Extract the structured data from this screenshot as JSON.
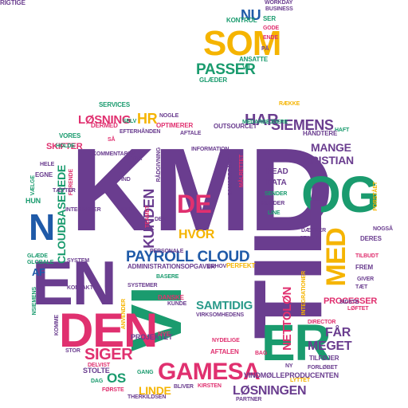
{
  "palette": {
    "purple": "#6a3d8f",
    "green": "#1a9b6e",
    "pink": "#e0306f",
    "gold": "#f5b400",
    "blue": "#1f5aa8",
    "teal": "#2a9a8a"
  },
  "words": [
    {
      "text": "KMD",
      "c": "purple"
    },
    {
      "text": "VI",
      "c": "green"
    },
    {
      "text": "OG",
      "c": "green"
    },
    {
      "text": "EN",
      "c": "purple"
    },
    {
      "text": "TIL",
      "c": "purple"
    },
    {
      "text": "DEN",
      "c": "pink"
    },
    {
      "text": "ER",
      "c": "green"
    },
    {
      "text": "SOM",
      "c": "gold"
    },
    {
      "text": "MED",
      "c": "gold"
    },
    {
      "text": "N",
      "c": "blue"
    },
    {
      "text": "GAMESA",
      "c": "pink"
    },
    {
      "text": "PAYROLL CLOUD",
      "c": "blue"
    },
    {
      "text": "DE",
      "c": "pink"
    },
    {
      "text": "SIEMENS",
      "c": "purple"
    },
    {
      "text": "CLOUDBASEREDE",
      "c": "green"
    },
    {
      "text": "LØSNING",
      "c": "pink"
    },
    {
      "text": "SAMTIDIG",
      "c": "teal"
    },
    {
      "text": "NETTOLØN",
      "c": "pink"
    },
    {
      "text": "KUNDEN",
      "c": "purple"
    },
    {
      "text": "HVOR",
      "c": "gold"
    },
    {
      "text": "PASSER",
      "c": "green"
    },
    {
      "text": "NU",
      "c": "blue"
    },
    {
      "text": "MANGE",
      "c": "purple"
    },
    {
      "text": "KRISTIAN",
      "c": "purple"
    },
    {
      "text": "HAR",
      "c": "purple"
    },
    {
      "text": "HR",
      "c": "gold"
    },
    {
      "text": "SIGER",
      "c": "pink"
    },
    {
      "text": "OS",
      "c": "green"
    },
    {
      "text": "LINDE",
      "c": "gold"
    },
    {
      "text": "FÅR",
      "c": "purple"
    },
    {
      "text": "MEGET",
      "c": "purple"
    },
    {
      "text": "LØSNINGEN",
      "c": "purple"
    },
    {
      "text": "AF",
      "c": "blue"
    },
    {
      "text": "HEAD",
      "c": "purple"
    },
    {
      "text": "DATA",
      "c": "purple"
    },
    {
      "text": "SKIFTER",
      "c": "pink"
    },
    {
      "text": "PROCESSER",
      "c": "pink"
    },
    {
      "text": "VINDMØLLEPRODUCENTEN",
      "c": "purple"
    },
    {
      "text": "PROJEKTET",
      "c": "purple"
    },
    {
      "text": "GLÆDER",
      "c": "green"
    },
    {
      "text": "KONTROL",
      "c": "green"
    },
    {
      "text": "SER",
      "c": "green"
    },
    {
      "text": "ANSATTE",
      "c": "green"
    },
    {
      "text": "VIL",
      "c": "green"
    },
    {
      "text": "WORKDAY",
      "c": "purple"
    },
    {
      "text": "BUSINESS",
      "c": "purple"
    },
    {
      "text": "GODE",
      "c": "pink"
    },
    {
      "text": "ENDE",
      "c": "pink"
    },
    {
      "text": "PÅ",
      "c": "purple"
    },
    {
      "text": "SERVICES",
      "c": "green"
    },
    {
      "text": "NOGLE",
      "c": "purple"
    },
    {
      "text": "DERMED",
      "c": "pink"
    },
    {
      "text": "SELV",
      "c": "green"
    },
    {
      "text": "OPTIMERER",
      "c": "pink"
    },
    {
      "text": "EFTERHÅNDEN",
      "c": "purple"
    },
    {
      "text": "AFTALE",
      "c": "purple"
    },
    {
      "text": "OUTSOURCET",
      "c": "purple"
    },
    {
      "text": "RÆKKE",
      "c": "gold"
    },
    {
      "text": "HAFT",
      "c": "green"
    },
    {
      "text": "HÅNDTERE",
      "c": "purple"
    },
    {
      "text": "VORES",
      "c": "green"
    },
    {
      "text": "SÅ",
      "c": "pink"
    },
    {
      "text": "TAK",
      "c": "purple"
    },
    {
      "text": "IND",
      "c": "purple"
    },
    {
      "text": "HELE",
      "c": "purple"
    },
    {
      "text": "EGNE",
      "c": "purple"
    },
    {
      "text": "HUN",
      "c": "green"
    },
    {
      "text": "GLÆDE",
      "c": "green"
    },
    {
      "text": "GLOBALE",
      "c": "green"
    },
    {
      "text": "SYSTEM",
      "c": "purple"
    },
    {
      "text": "KONTAKT",
      "c": "purple"
    },
    {
      "text": "SYSTEMER",
      "c": "purple"
    },
    {
      "text": "ADMINISTRATIONSOPGAVER",
      "c": "purple"
    },
    {
      "text": "BEHOV",
      "c": "purple"
    },
    {
      "text": "PERFEKT",
      "c": "gold"
    },
    {
      "text": "DANSKE",
      "c": "pink"
    },
    {
      "text": "KUNDE",
      "c": "purple"
    },
    {
      "text": "VIRKSOMHEDENS",
      "c": "purple"
    },
    {
      "text": "NYE",
      "c": "pink"
    },
    {
      "text": "AFTALEN",
      "c": "pink"
    },
    {
      "text": "BAG",
      "c": "pink"
    },
    {
      "text": "NY",
      "c": "purple"
    },
    {
      "text": "TILFØJER",
      "c": "purple"
    },
    {
      "text": "FORLØBET",
      "c": "purple"
    },
    {
      "text": "LYTTET",
      "c": "gold"
    },
    {
      "text": "PARTNER",
      "c": "purple"
    },
    {
      "text": "BLIVER",
      "c": "purple"
    },
    {
      "text": "KIRSTEN",
      "c": "pink"
    },
    {
      "text": "THERKILDSEN",
      "c": "purple"
    },
    {
      "text": "FØRSTE",
      "c": "pink"
    },
    {
      "text": "STOLTE",
      "c": "purple"
    },
    {
      "text": "DAG",
      "c": "green"
    },
    {
      "text": "GANG",
      "c": "green"
    },
    {
      "text": "STOR",
      "c": "purple"
    },
    {
      "text": "DELVIST",
      "c": "pink"
    },
    {
      "text": "KOMME",
      "c": "purple"
    },
    {
      "text": "FREM",
      "c": "purple"
    },
    {
      "text": "GIVER",
      "c": "purple"
    },
    {
      "text": "TÆT",
      "c": "purple"
    },
    {
      "text": "LØFTET",
      "c": "pink"
    },
    {
      "text": "SIDSTE",
      "c": "purple"
    },
    {
      "text": "DIRECTOR",
      "c": "pink"
    },
    {
      "text": "TILBUDT",
      "c": "pink"
    },
    {
      "text": "DERES",
      "c": "purple"
    },
    {
      "text": "NOGSÅ",
      "c": "purple"
    },
    {
      "text": "DÆKKER",
      "c": "purple"
    },
    {
      "text": "STADIG",
      "c": "purple"
    },
    {
      "text": "SENDER",
      "c": "green"
    },
    {
      "text": "KUNDER",
      "c": "purple"
    },
    {
      "text": "LINE",
      "c": "green"
    },
    {
      "text": "DER",
      "c": "purple"
    },
    {
      "text": "TEAMET",
      "c": "pink"
    },
    {
      "text": "RÅDGIVNING",
      "c": "purple"
    },
    {
      "text": "FORSTÅET",
      "c": "gold"
    },
    {
      "text": "INTEGRATIONER",
      "c": "gold"
    },
    {
      "text": "INTEGRERER",
      "c": "purple"
    },
    {
      "text": "VÆLGE",
      "c": "green"
    },
    {
      "text": "FORENDE",
      "c": "pink"
    },
    {
      "text": "NSIEMENS",
      "c": "green"
    },
    {
      "text": "ANVENDER",
      "c": "gold"
    },
    {
      "text": "MEDARBEJDERE",
      "c": "green"
    },
    {
      "text": "SAMARBEJDET",
      "c": "purple"
    },
    {
      "text": "MÅLRETTET",
      "c": "pink"
    },
    {
      "text": "KOMMENTARER",
      "c": "purple"
    },
    {
      "text": "HOLDE",
      "c": "green"
    },
    {
      "text": "TÆTTER",
      "c": "purple"
    },
    {
      "text": "INFORMATION",
      "c": "purple"
    },
    {
      "text": "NYDELIGE",
      "c": "pink"
    },
    {
      "text": "IKKE",
      "c": "purple"
    },
    {
      "text": "PERSONALE",
      "c": "purple"
    },
    {
      "text": "BASERE",
      "c": "green"
    },
    {
      "text": "RIGTIGE",
      "c": "purple"
    }
  ]
}
